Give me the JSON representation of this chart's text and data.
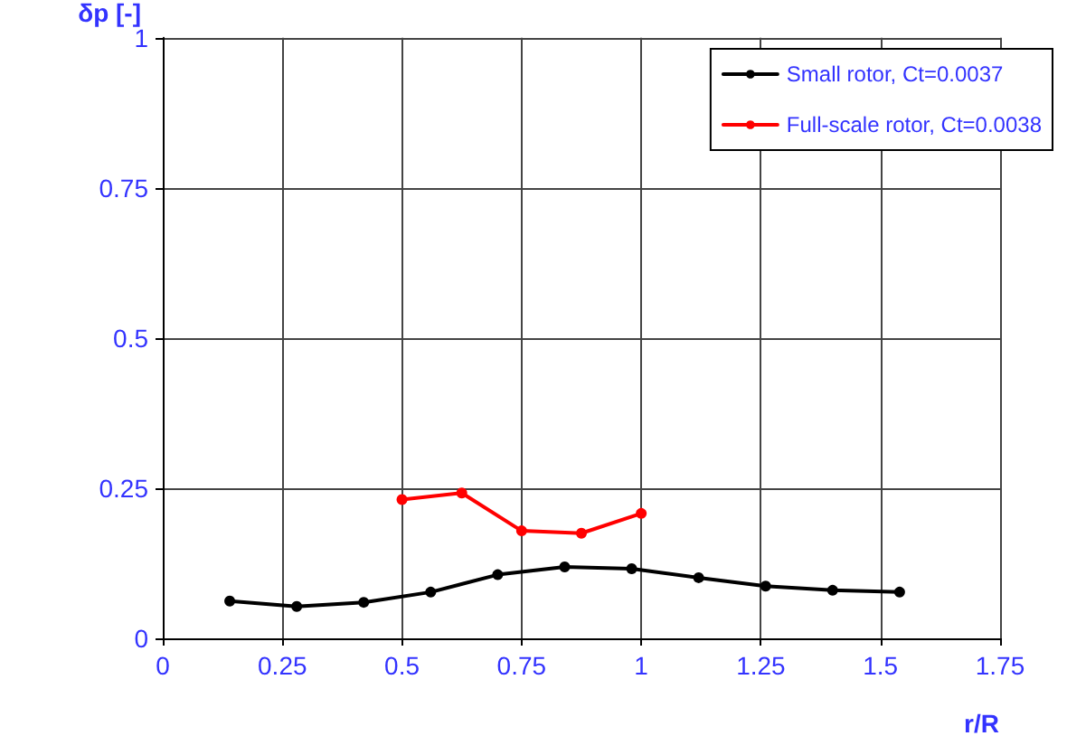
{
  "chart_data": {
    "type": "line",
    "xlabel": "r/R",
    "ylabel": "δp [-]",
    "series": [
      {
        "name": "Small rotor, Ct=0.0037",
        "color": "#000000",
        "x": [
          0.14,
          0.28,
          0.42,
          0.56,
          0.7,
          0.84,
          0.98,
          1.12,
          1.26,
          1.4,
          1.54
        ],
        "values": [
          0.062,
          0.053,
          0.06,
          0.077,
          0.106,
          0.119,
          0.116,
          0.101,
          0.087,
          0.08,
          0.077
        ]
      },
      {
        "name": "Full-scale rotor, Ct=0.0038",
        "color": "#ff0000",
        "x": [
          0.5,
          0.625,
          0.75,
          0.875,
          1.0
        ],
        "values": [
          0.231,
          0.242,
          0.179,
          0.175,
          0.208
        ]
      }
    ],
    "xlim": [
      0,
      1.75
    ],
    "xticks": [
      0,
      0.25,
      0.5,
      0.75,
      1,
      1.25,
      1.5,
      1.75
    ],
    "ylim": [
      0,
      1
    ],
    "yticks": [
      0,
      0.25,
      0.5,
      0.75,
      1
    ],
    "grid": true,
    "legend": "top right",
    "marker": "circle",
    "line_style": "solid"
  }
}
